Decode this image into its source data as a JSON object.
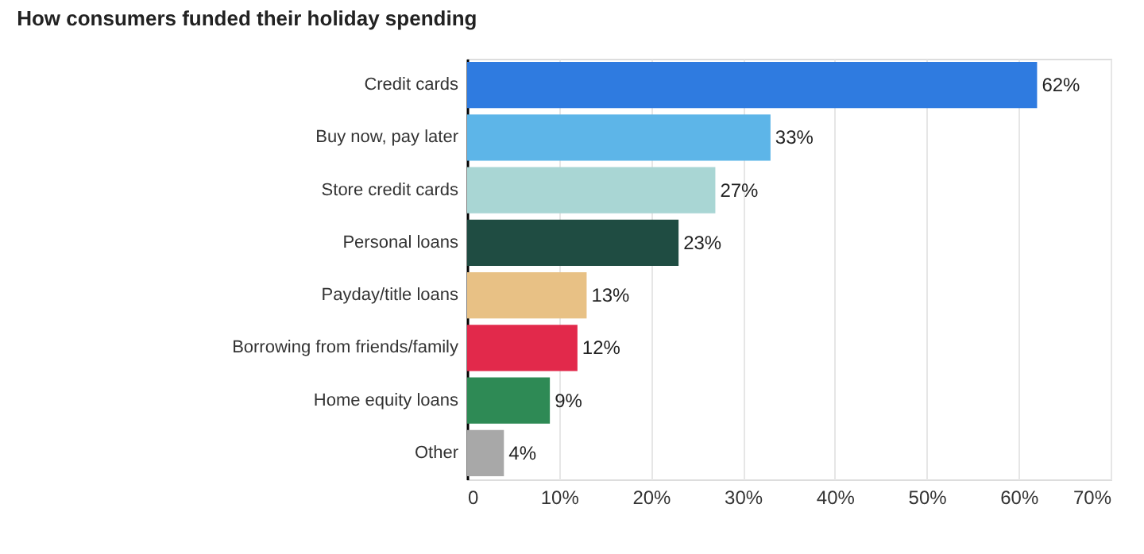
{
  "chart_data": {
    "type": "bar",
    "orientation": "horizontal",
    "title": "How consumers funded their holiday spending",
    "categories": [
      "Credit cards",
      "Buy now, pay later",
      "Store credit cards",
      "Personal loans",
      "Payday/title loans",
      "Borrowing from friends/family",
      "Home equity loans",
      "Other"
    ],
    "values": [
      62,
      33,
      27,
      23,
      13,
      12,
      9,
      4
    ],
    "value_labels": [
      "62%",
      "33%",
      "27%",
      "23%",
      "13%",
      "12%",
      "9%",
      "4%"
    ],
    "colors": [
      "#2f7be0",
      "#5db5e8",
      "#a9d6d4",
      "#1f4c42",
      "#e8c185",
      "#e2294b",
      "#2e8a55",
      "#a8a8a8"
    ],
    "xlim": [
      0,
      70
    ],
    "xticks": [
      0,
      {
        "value": 10,
        "label": "10%"
      },
      {
        "value": 20,
        "label": "20%"
      },
      {
        "value": 30,
        "label": "30%"
      },
      {
        "value": 40,
        "label": "40%"
      },
      {
        "value": 50,
        "label": "50%"
      },
      {
        "value": 60,
        "label": "60%"
      },
      {
        "value": 70,
        "label": "70%"
      }
    ],
    "grid": "x"
  }
}
